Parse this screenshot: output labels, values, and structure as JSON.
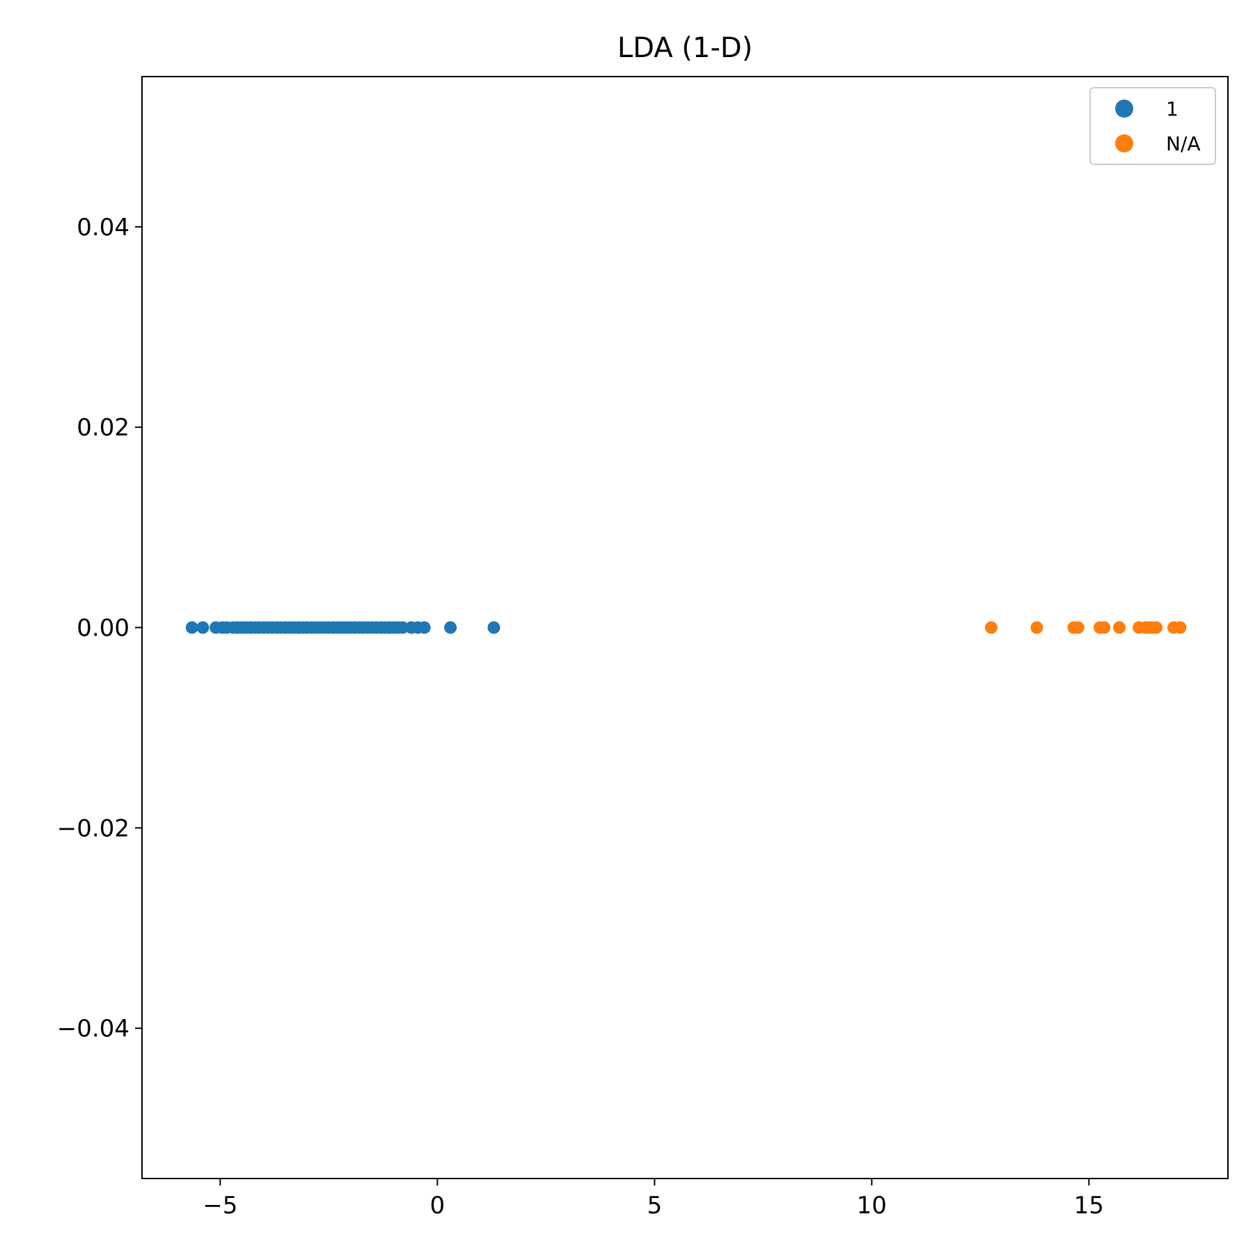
{
  "chart_data": {
    "type": "scatter",
    "title": "LDA (1-D)",
    "xlabel": "",
    "ylabel": "",
    "xlim": [
      -6.8,
      18.2
    ],
    "ylim": [
      -0.055,
      0.055
    ],
    "xticks": [
      -5,
      0,
      5,
      10,
      15
    ],
    "xtick_labels": [
      "−5",
      "0",
      "5",
      "10",
      "15"
    ],
    "yticks": [
      -0.04,
      -0.02,
      0.0,
      0.02,
      0.04
    ],
    "ytick_labels": [
      "−0.04",
      "−0.02",
      "0.00",
      "0.02",
      "0.04"
    ],
    "grid": false,
    "legend_position": "top-right",
    "series": [
      {
        "name": "1",
        "color": "#1f77b4",
        "x": [
          -5.65,
          -5.4,
          -5.1,
          -4.95,
          -4.85,
          -4.7,
          -4.6,
          -4.5,
          -4.4,
          -4.3,
          -4.2,
          -4.1,
          -4.0,
          -3.9,
          -3.8,
          -3.7,
          -3.6,
          -3.5,
          -3.4,
          -3.3,
          -3.2,
          -3.1,
          -3.0,
          -2.9,
          -2.8,
          -2.7,
          -2.6,
          -2.5,
          -2.4,
          -2.3,
          -2.2,
          -2.1,
          -2.0,
          -1.9,
          -1.8,
          -1.7,
          -1.6,
          -1.5,
          -1.4,
          -1.3,
          -1.2,
          -1.1,
          -1.0,
          -0.9,
          -0.8,
          -0.6,
          -0.45,
          -0.3,
          0.3,
          1.3
        ],
        "y": [
          0,
          0,
          0,
          0,
          0,
          0,
          0,
          0,
          0,
          0,
          0,
          0,
          0,
          0,
          0,
          0,
          0,
          0,
          0,
          0,
          0,
          0,
          0,
          0,
          0,
          0,
          0,
          0,
          0,
          0,
          0,
          0,
          0,
          0,
          0,
          0,
          0,
          0,
          0,
          0,
          0,
          0,
          0,
          0,
          0,
          0,
          0,
          0,
          0,
          0
        ]
      },
      {
        "name": "N/A",
        "color": "#ff7f0e",
        "x": [
          12.75,
          13.8,
          14.65,
          14.75,
          15.25,
          15.35,
          15.7,
          16.15,
          16.3,
          16.4,
          16.45,
          16.55,
          16.95,
          17.1
        ],
        "y": [
          0,
          0,
          0,
          0,
          0,
          0,
          0,
          0,
          0,
          0,
          0,
          0,
          0,
          0
        ]
      }
    ]
  }
}
